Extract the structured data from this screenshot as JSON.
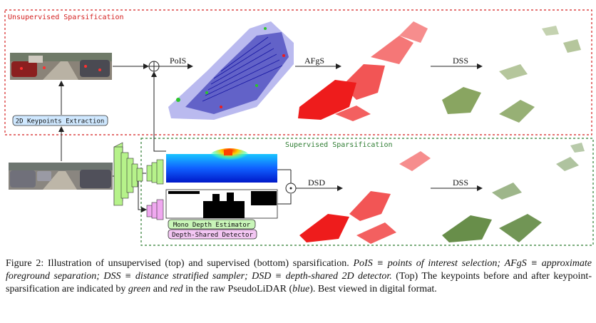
{
  "figure": {
    "unsupervised_title": "Unsupervised Sparsification",
    "supervised_title": "Supervised Sparsification",
    "keypoints_label": "2D Keypoints Extraction",
    "mono_depth_label": "Mono Depth Estimator",
    "depth_shared_label": "Depth-Shared Detector",
    "pois": "PoIS",
    "afgs": "AFgS",
    "dss_top": "DSS",
    "dsd": "DSD",
    "dss_bottom": "DSS",
    "colors": {
      "unsupervised_border": "#d42020",
      "supervised_border": "#2e7d32",
      "pseudolidar_blue": "#1a1aa8",
      "sparse_red": "#ee1c1c",
      "dss_green": "#6b8e3a",
      "keypoint_box": "#cfe8ff",
      "mono_depth_box": "#c8f5b8",
      "depth_shared_box": "#f3c6f3",
      "encoder_green": "#b6f28a",
      "decoder_pink": "#f0a8f0"
    }
  },
  "caption": {
    "label": "Figure 2:",
    "text1": " Illustration of unsupervised (top) and supervised (bottom) sparsification. ",
    "def_pois": "PoIS ≡ points of interest selection; AFgS ≡ approximate foreground separation; DSS ≡ distance stratified sampler; DSD ≡ depth-shared 2D detector.",
    "text2": " (Top) The keypoints before and after keypoint-sparsification are indicated by ",
    "green": "green",
    "and": " and ",
    "red": "red",
    "text3": " in the raw PseudoLiDAR (",
    "blue": "blue",
    "text4": "). Best viewed in digital format."
  }
}
